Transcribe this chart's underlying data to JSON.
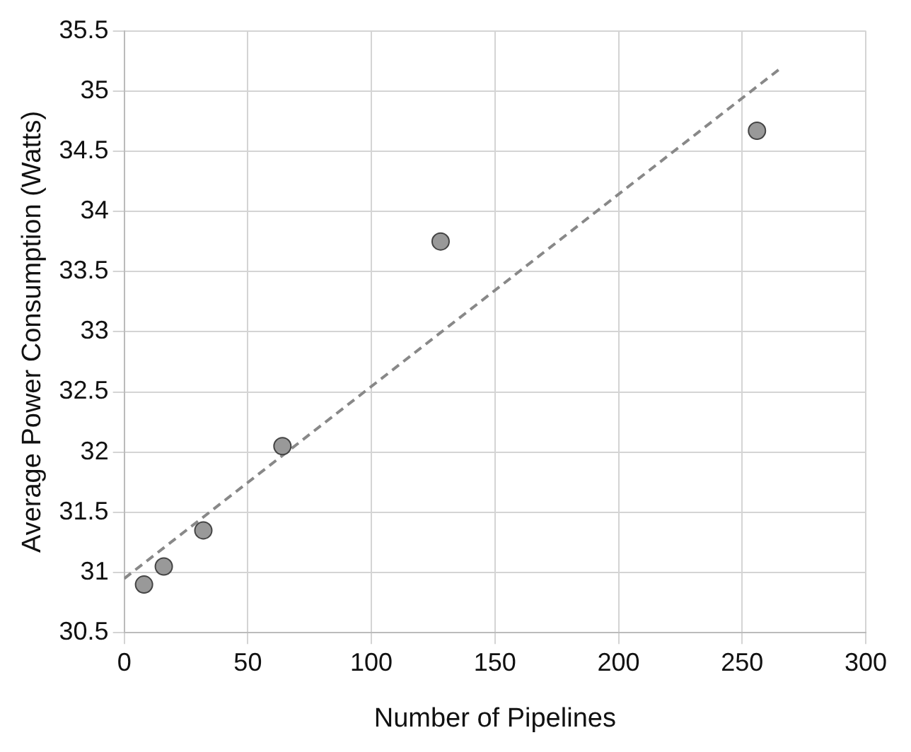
{
  "chart_data": {
    "type": "scatter",
    "xlabel": "Number of Pipelines",
    "ylabel": "Average Power Consumption (Watts)",
    "x": [
      8,
      16,
      32,
      64,
      128,
      256
    ],
    "series": [
      {
        "color": "#999999",
        "values": [
          30.9,
          31.05,
          31.35,
          32.05,
          33.75,
          34.67
        ],
        "marker": "circle"
      },
      {
        "type": "line",
        "color": "#888888",
        "x": [
          0,
          265
        ],
        "values": [
          30.95,
          35.18
        ],
        "line_style": "dashed",
        "marker": "none"
      }
    ],
    "xlim": [
      0,
      300
    ],
    "xticks": [
      0,
      50,
      100,
      150,
      200,
      250,
      300
    ],
    "ylim": [
      30.5,
      35.5
    ],
    "yticks": [
      30.5,
      31,
      31.5,
      32,
      32.5,
      33,
      33.5,
      34,
      34.5,
      35,
      35.5
    ],
    "grid": true,
    "legend": false
  }
}
